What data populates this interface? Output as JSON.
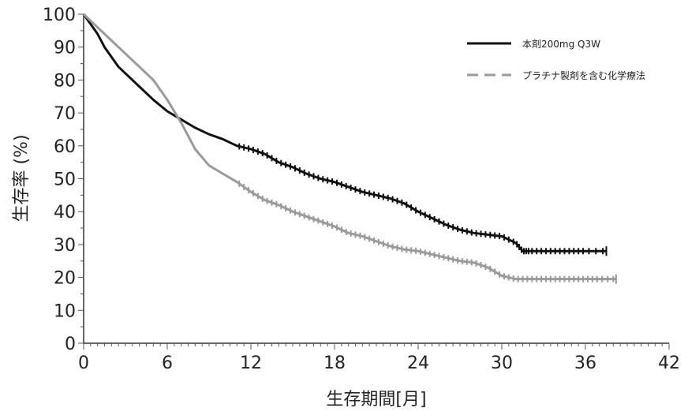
{
  "chart_data": {
    "type": "line",
    "title": "",
    "xlabel": "生存期間[月]",
    "ylabel": "生存率 (%)",
    "xlim": [
      0,
      42
    ],
    "ylim": [
      0,
      100
    ],
    "xticks": [
      "0",
      "6",
      "12",
      "18",
      "24",
      "30",
      "36",
      "42"
    ],
    "yticks": [
      "0",
      "10",
      "20",
      "30",
      "40",
      "50",
      "60",
      "70",
      "80",
      "90",
      "100"
    ],
    "grid": false,
    "legend_position": "top-right",
    "series": [
      {
        "name": "本剤200mg Q3W",
        "color": "#111111",
        "style": "solid",
        "x": [
          0,
          0.5,
          1,
          1.5,
          2,
          2.5,
          3,
          4,
          5,
          6,
          7,
          8,
          9,
          10,
          11,
          12,
          13,
          14,
          15,
          16,
          17,
          18,
          19,
          20,
          21,
          22,
          23,
          24,
          25,
          26,
          27,
          28,
          29,
          30,
          31,
          31.5,
          32,
          33,
          34,
          35,
          36,
          37.5
        ],
        "y": [
          100,
          97,
          94,
          90,
          87,
          84,
          82,
          78,
          74,
          70.5,
          68,
          65.5,
          63.5,
          62,
          60,
          59,
          57.5,
          55,
          53.5,
          51.5,
          50,
          49,
          47.5,
          46,
          45,
          44,
          42.5,
          40,
          38,
          36,
          34.5,
          33.5,
          33,
          32.5,
          30.5,
          28,
          28,
          28,
          28,
          28,
          28,
          28
        ]
      },
      {
        "name": "プラチナ製剤を含む化学療法",
        "color": "#9a9a9a",
        "style": "solid",
        "x": [
          0,
          0.5,
          1,
          2,
          3,
          4,
          5,
          6,
          7,
          8,
          9,
          10,
          11,
          12,
          13,
          14,
          15,
          16,
          17,
          18,
          19,
          20,
          21,
          22,
          23,
          24,
          25,
          26,
          27,
          28,
          29,
          30,
          31,
          32,
          33,
          34,
          35,
          36,
          37,
          38.2
        ],
        "y": [
          100,
          98,
          96,
          92,
          88,
          84,
          80,
          74,
          67,
          59,
          54,
          51.5,
          49,
          46,
          43.5,
          42,
          40,
          38.5,
          37,
          35.5,
          33.5,
          32.5,
          31,
          29.5,
          28.5,
          28,
          27,
          26,
          25,
          24.5,
          23,
          20.5,
          19.5,
          19.5,
          19.5,
          19.5,
          19.5,
          19.5,
          19.5,
          19.5
        ]
      }
    ]
  }
}
